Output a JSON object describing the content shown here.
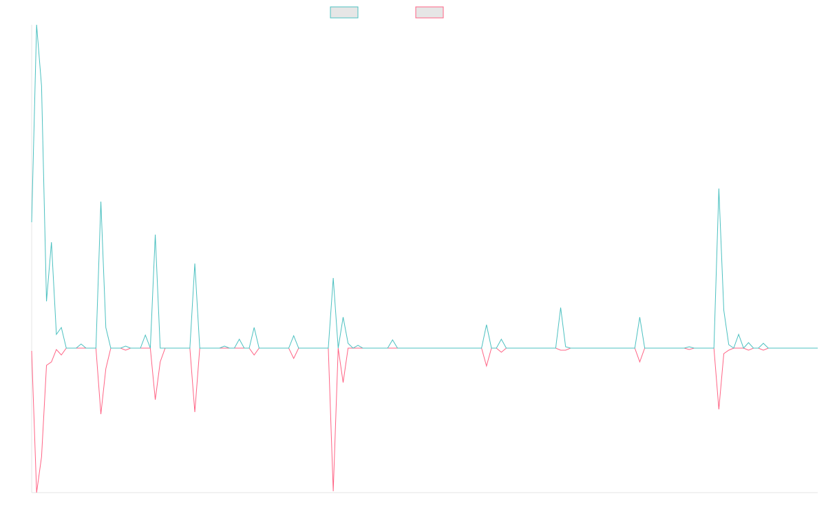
{
  "chart_data": {
    "type": "line",
    "categories": [
      null,
      null,
      null,
      null,
      null,
      null,
      null,
      null,
      null,
      null,
      null,
      null,
      null,
      null,
      null,
      null,
      null,
      null,
      null,
      null,
      null,
      null,
      null,
      null,
      null,
      null,
      null,
      null,
      null,
      null,
      null,
      null,
      null,
      null,
      null,
      null,
      null,
      null,
      null,
      null,
      null,
      null,
      null,
      null,
      null,
      null,
      null,
      null,
      null,
      null,
      null,
      null,
      null,
      null,
      null,
      null,
      null,
      null,
      null,
      null,
      null,
      null,
      null,
      null,
      null,
      null,
      null,
      null,
      null,
      null,
      null,
      null,
      null,
      null,
      null,
      null,
      null,
      null,
      null,
      null,
      null,
      null,
      null,
      null,
      null,
      null,
      null,
      null,
      null,
      null,
      null,
      null,
      null,
      null,
      null,
      null,
      null,
      null,
      null,
      null,
      null,
      null,
      null,
      null,
      null,
      null,
      null,
      null,
      null,
      null,
      null,
      null,
      null,
      null,
      null,
      null,
      null,
      null,
      null,
      null,
      null,
      null,
      null,
      null,
      null,
      null,
      null,
      null,
      null,
      null,
      null,
      null,
      null,
      null,
      null,
      null,
      null,
      null,
      null,
      null,
      null,
      null,
      null,
      null,
      null,
      null,
      null,
      null,
      null,
      null,
      null,
      null,
      null,
      null,
      null,
      null,
      null,
      null,
      null,
      null
    ],
    "series": [
      {
        "color": "#4bc0c0",
        "values": [
          183,
          470,
          381,
          68,
          154,
          20,
          30,
          0,
          0,
          0,
          6,
          0,
          0,
          0,
          213,
          30,
          0,
          0,
          0,
          3,
          0,
          0,
          0,
          19,
          0,
          165,
          0,
          0,
          0,
          0,
          0,
          0,
          0,
          123,
          0,
          0,
          0,
          0,
          0,
          3,
          0,
          0,
          13,
          0,
          0,
          30,
          0,
          0,
          0,
          0,
          0,
          0,
          0,
          18,
          0,
          0,
          0,
          0,
          0,
          0,
          0,
          102,
          0,
          45,
          7,
          0,
          4,
          0,
          0,
          0,
          0,
          0,
          0,
          12,
          0,
          0,
          0,
          0,
          0,
          0,
          0,
          0,
          0,
          0,
          0,
          0,
          0,
          0,
          0,
          0,
          0,
          0,
          34,
          0,
          0,
          13,
          0,
          0,
          0,
          0,
          0,
          0,
          0,
          0,
          0,
          0,
          0,
          59,
          2,
          0,
          0,
          0,
          0,
          0,
          0,
          0,
          0,
          0,
          0,
          0,
          0,
          0,
          0,
          45,
          0,
          0,
          0,
          0,
          0,
          0,
          0,
          0,
          0,
          2,
          0,
          0,
          0,
          0,
          0,
          232,
          55,
          5,
          0,
          20,
          0,
          8,
          0,
          0,
          7,
          0,
          0,
          0,
          0,
          0,
          0,
          0,
          0,
          0,
          0,
          0
        ]
      },
      {
        "color": "#ff6384",
        "values": [
          -4,
          -210,
          -158,
          -25,
          -20,
          -2,
          -10,
          0,
          0,
          0,
          0,
          0,
          0,
          0,
          -96,
          -30,
          0,
          0,
          0,
          -3,
          0,
          0,
          0,
          0,
          0,
          -75,
          -20,
          0,
          0,
          0,
          0,
          0,
          0,
          -93,
          0,
          0,
          0,
          0,
          0,
          0,
          0,
          0,
          0,
          0,
          0,
          -10,
          0,
          0,
          0,
          0,
          0,
          0,
          0,
          -15,
          0,
          0,
          0,
          0,
          0,
          0,
          0,
          -208,
          0,
          -50,
          0,
          0,
          0,
          0,
          0,
          0,
          0,
          0,
          0,
          0,
          0,
          0,
          0,
          0,
          0,
          0,
          0,
          0,
          0,
          0,
          0,
          0,
          0,
          0,
          0,
          0,
          0,
          0,
          -26,
          0,
          0,
          -6,
          0,
          0,
          0,
          0,
          0,
          0,
          0,
          0,
          0,
          0,
          0,
          -3,
          -3,
          0,
          0,
          0,
          0,
          0,
          0,
          0,
          0,
          0,
          0,
          0,
          0,
          0,
          0,
          -20,
          0,
          0,
          0,
          0,
          0,
          0,
          0,
          0,
          0,
          -2,
          0,
          0,
          0,
          0,
          0,
          -89,
          -8,
          -3,
          0,
          0,
          0,
          -3,
          0,
          0,
          -3,
          0,
          0,
          0,
          0,
          0,
          0,
          0,
          0,
          0,
          0,
          0
        ]
      }
    ],
    "ylim": [
      -210,
      470
    ]
  }
}
